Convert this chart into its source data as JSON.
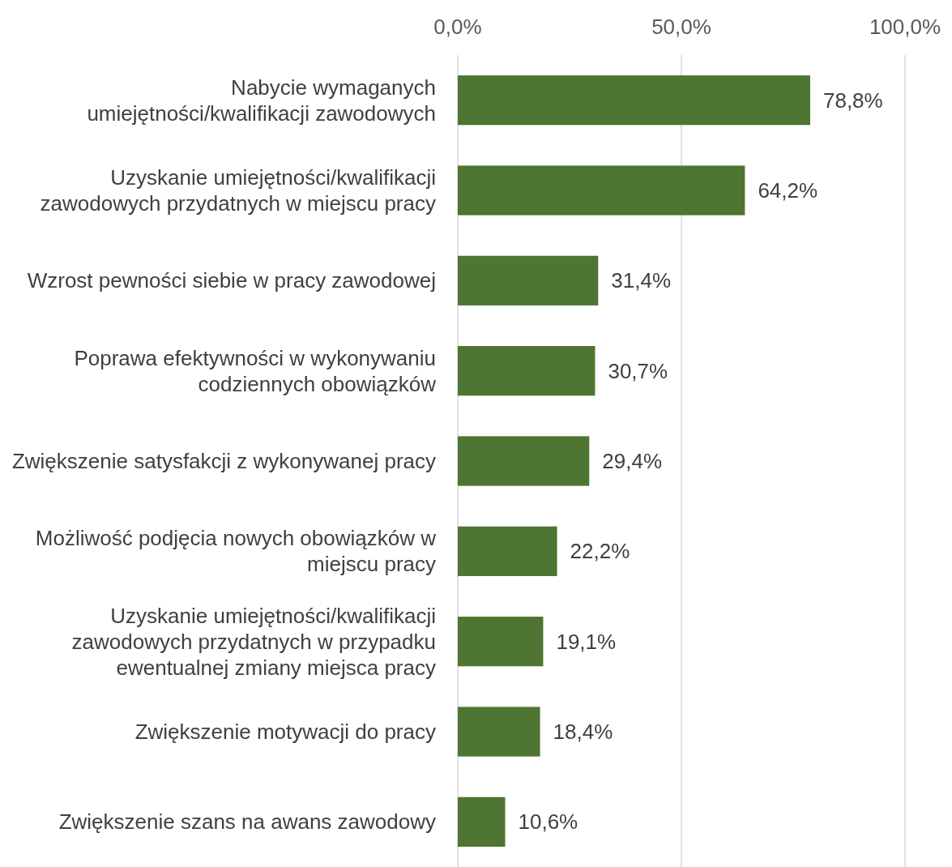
{
  "chart_data": {
    "type": "bar",
    "orientation": "horizontal",
    "categories": [
      "Nabycie wymaganych umiejętności/kwalifikacji zawodowych",
      "Uzyskanie umiejętności/kwalifikacji zawodowych przydatnych w miejscu pracy",
      "Wzrost pewności siebie w pracy zawodowej",
      "Poprawa efektywności w wykonywaniu codziennych obowiązków",
      "Zwiększenie satysfakcji z wykonywanej pracy",
      "Możliwość podjęcia nowych obowiązków w miejscu pracy",
      "Uzyskanie umiejętności/kwalifikacji zawodowych przydatnych w przypadku ewentualnej zmiany miejsca pracy",
      "Zwiększenie motywacji do pracy",
      "Zwiększenie szans na awans zawodowy"
    ],
    "values": [
      78.8,
      64.2,
      31.4,
      30.7,
      29.4,
      22.2,
      19.1,
      18.4,
      10.6
    ],
    "value_labels": [
      "78,8%",
      "64,2%",
      "31,4%",
      "30,7%",
      "29,4%",
      "22,2%",
      "19,1%",
      "18,4%",
      "10,6%"
    ],
    "color": "#4e7531",
    "xlim": [
      0,
      100
    ],
    "xticks": [
      {
        "value": 0,
        "label": "0,0%"
      },
      {
        "value": 50,
        "label": "50,0%"
      },
      {
        "value": 100,
        "label": "100,0%"
      }
    ],
    "grid": "x"
  }
}
